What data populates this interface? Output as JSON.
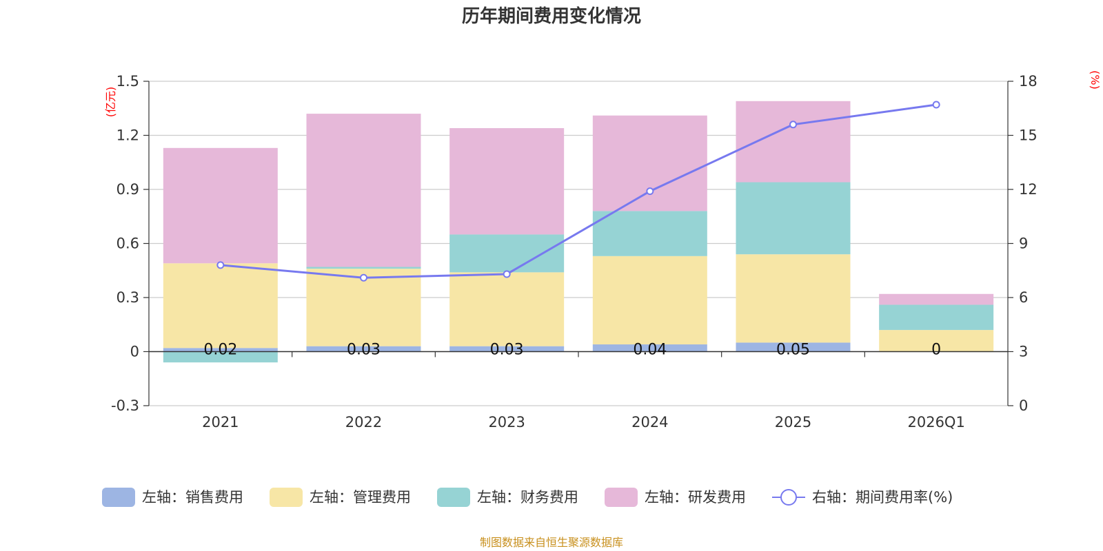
{
  "colors": {
    "sales": "#9db5e3",
    "admin": "#f7e6a6",
    "finance": "#96d3d4",
    "rd": "#e6b8d9",
    "rate": "#7779ef",
    "unit": "#ff0000",
    "source": "#c8901e"
  },
  "chart_data": {
    "type": "bar",
    "stacked": true,
    "title": "历年期间费用变化情况",
    "categories": [
      "2021",
      "2022",
      "2023",
      "2024",
      "2025",
      "2026Q1"
    ],
    "y_left": {
      "unit_label": "(亿元)",
      "ylim": [
        -0.3,
        1.5
      ],
      "ticks": [
        "-0.3",
        "0",
        "0.3",
        "0.6",
        "0.9",
        "1.2",
        "1.5"
      ],
      "tick_values": [
        -0.3,
        0,
        0.3,
        0.6,
        0.9,
        1.2,
        1.5
      ]
    },
    "y_right": {
      "unit_label": "(%)",
      "ylim": [
        0,
        18
      ],
      "ticks": [
        "0",
        "3",
        "6",
        "9",
        "12",
        "15",
        "18"
      ],
      "tick_values": [
        0,
        3,
        6,
        9,
        12,
        15,
        18
      ]
    },
    "series": [
      {
        "name": "左轴：销售费用",
        "key": "sales",
        "axis": "left",
        "type": "bar",
        "values": [
          0.02,
          0.03,
          0.03,
          0.04,
          0.05,
          0
        ]
      },
      {
        "name": "左轴：管理费用",
        "key": "admin",
        "axis": "left",
        "type": "bar",
        "values": [
          0.47,
          0.43,
          0.41,
          0.49,
          0.49,
          0.12
        ]
      },
      {
        "name": "左轴：财务费用",
        "key": "finance",
        "axis": "left",
        "type": "bar",
        "values": [
          -0.06,
          0.01,
          0.21,
          0.25,
          0.4,
          0.14
        ]
      },
      {
        "name": "左轴：研发费用",
        "key": "rd",
        "axis": "left",
        "type": "bar",
        "values": [
          0.64,
          0.85,
          0.59,
          0.53,
          0.45,
          0.06
        ]
      },
      {
        "name": "右轴：期间费用率(%)",
        "key": "rate",
        "axis": "right",
        "type": "line",
        "values": [
          7.8,
          7.1,
          7.3,
          11.9,
          15.6,
          16.7
        ]
      }
    ],
    "data_labels": [
      "0.02",
      "0.03",
      "0.03",
      "0.04",
      "0.05",
      "0"
    ],
    "legend_position": "bottom",
    "grid": true,
    "source": "制图数据来自恒生聚源数据库"
  }
}
